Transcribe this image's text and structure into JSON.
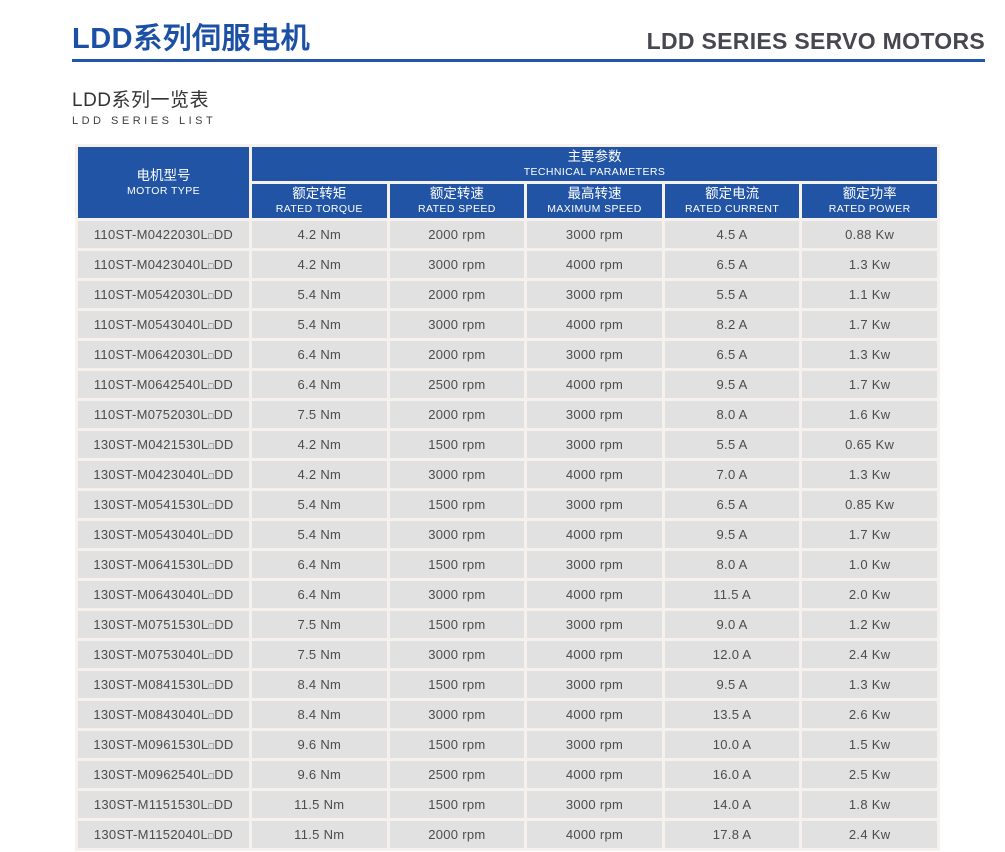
{
  "header": {
    "title_zh": "LDD系列伺服电机",
    "title_en": "LDD SERIES SERVO MOTORS"
  },
  "subtitle": {
    "zh": "LDD系列一览表",
    "en": "LDD SERIES LIST"
  },
  "colors": {
    "accent_blue": "#2456a8",
    "title_blue": "#1b50a5",
    "table_header_blue": "#2154a5",
    "cell_gray": "#e1e1e1",
    "body_text": "#4c4c4c",
    "title_en_gray": "#47474f"
  },
  "table": {
    "motor_type": {
      "zh": "电机型号",
      "en": "MOTOR TYPE"
    },
    "group": {
      "zh": "主要参数",
      "en": "TECHNICAL PARAMETERS"
    },
    "columns": [
      {
        "zh": "额定转矩",
        "en": "RATED TORQUE"
      },
      {
        "zh": "额定转速",
        "en": "RATED SPEED"
      },
      {
        "zh": "最高转速",
        "en": "MAXIMUM SPEED"
      },
      {
        "zh": "额定电流",
        "en": "RATED CURRENT"
      },
      {
        "zh": "额定功率",
        "en": "RATED POWER"
      }
    ],
    "rows": [
      [
        "110ST-M0422030L□DD",
        "4.2 Nm",
        "2000 rpm",
        "3000 rpm",
        "4.5 A",
        "0.88 Kw"
      ],
      [
        "110ST-M0423040L□DD",
        "4.2 Nm",
        "3000 rpm",
        "4000 rpm",
        "6.5 A",
        "1.3 Kw"
      ],
      [
        "110ST-M0542030L□DD",
        "5.4 Nm",
        "2000 rpm",
        "3000 rpm",
        "5.5 A",
        "1.1 Kw"
      ],
      [
        "110ST-M0543040L□DD",
        "5.4 Nm",
        "3000 rpm",
        "4000 rpm",
        "8.2 A",
        "1.7 Kw"
      ],
      [
        "110ST-M0642030L□DD",
        "6.4 Nm",
        "2000 rpm",
        "3000 rpm",
        "6.5 A",
        "1.3 Kw"
      ],
      [
        "110ST-M0642540L□DD",
        "6.4 Nm",
        "2500 rpm",
        "4000 rpm",
        "9.5 A",
        "1.7 Kw"
      ],
      [
        "110ST-M0752030L□DD",
        "7.5 Nm",
        "2000 rpm",
        "3000 rpm",
        "8.0 A",
        "1.6 Kw"
      ],
      [
        "130ST-M0421530L□DD",
        "4.2 Nm",
        "1500 rpm",
        "3000 rpm",
        "5.5 A",
        "0.65 Kw"
      ],
      [
        "130ST-M0423040L□DD",
        "4.2 Nm",
        "3000 rpm",
        "4000 rpm",
        "7.0 A",
        "1.3 Kw"
      ],
      [
        "130ST-M0541530L□DD",
        "5.4 Nm",
        "1500 rpm",
        "3000 rpm",
        "6.5 A",
        "0.85 Kw"
      ],
      [
        "130ST-M0543040L□DD",
        "5.4 Nm",
        "3000 rpm",
        "4000 rpm",
        "9.5 A",
        "1.7 Kw"
      ],
      [
        "130ST-M0641530L□DD",
        "6.4 Nm",
        "1500 rpm",
        "3000 rpm",
        "8.0 A",
        "1.0 Kw"
      ],
      [
        "130ST-M0643040L□DD",
        "6.4 Nm",
        "3000 rpm",
        "4000 rpm",
        "11.5 A",
        "2.0 Kw"
      ],
      [
        "130ST-M0751530L□DD",
        "7.5 Nm",
        "1500 rpm",
        "3000 rpm",
        "9.0 A",
        "1.2 Kw"
      ],
      [
        "130ST-M0753040L□DD",
        "7.5 Nm",
        "3000 rpm",
        "4000 rpm",
        "12.0 A",
        "2.4 Kw"
      ],
      [
        "130ST-M0841530L□DD",
        "8.4 Nm",
        "1500 rpm",
        "3000 rpm",
        "9.5 A",
        "1.3 Kw"
      ],
      [
        "130ST-M0843040L□DD",
        "8.4 Nm",
        "3000 rpm",
        "4000 rpm",
        "13.5 A",
        "2.6 Kw"
      ],
      [
        "130ST-M0961530L□DD",
        "9.6 Nm",
        "1500 rpm",
        "3000 rpm",
        "10.0 A",
        "1.5 Kw"
      ],
      [
        "130ST-M0962540L□DD",
        "9.6 Nm",
        "2500 rpm",
        "4000 rpm",
        "16.0 A",
        "2.5 Kw"
      ],
      [
        "130ST-M1151530L□DD",
        "11.5 Nm",
        "1500 rpm",
        "3000 rpm",
        "14.0 A",
        "1.8 Kw"
      ],
      [
        "130ST-M1152040L□DD",
        "11.5 Nm",
        "2000 rpm",
        "4000 rpm",
        "17.8 A",
        "2.4 Kw"
      ]
    ]
  }
}
